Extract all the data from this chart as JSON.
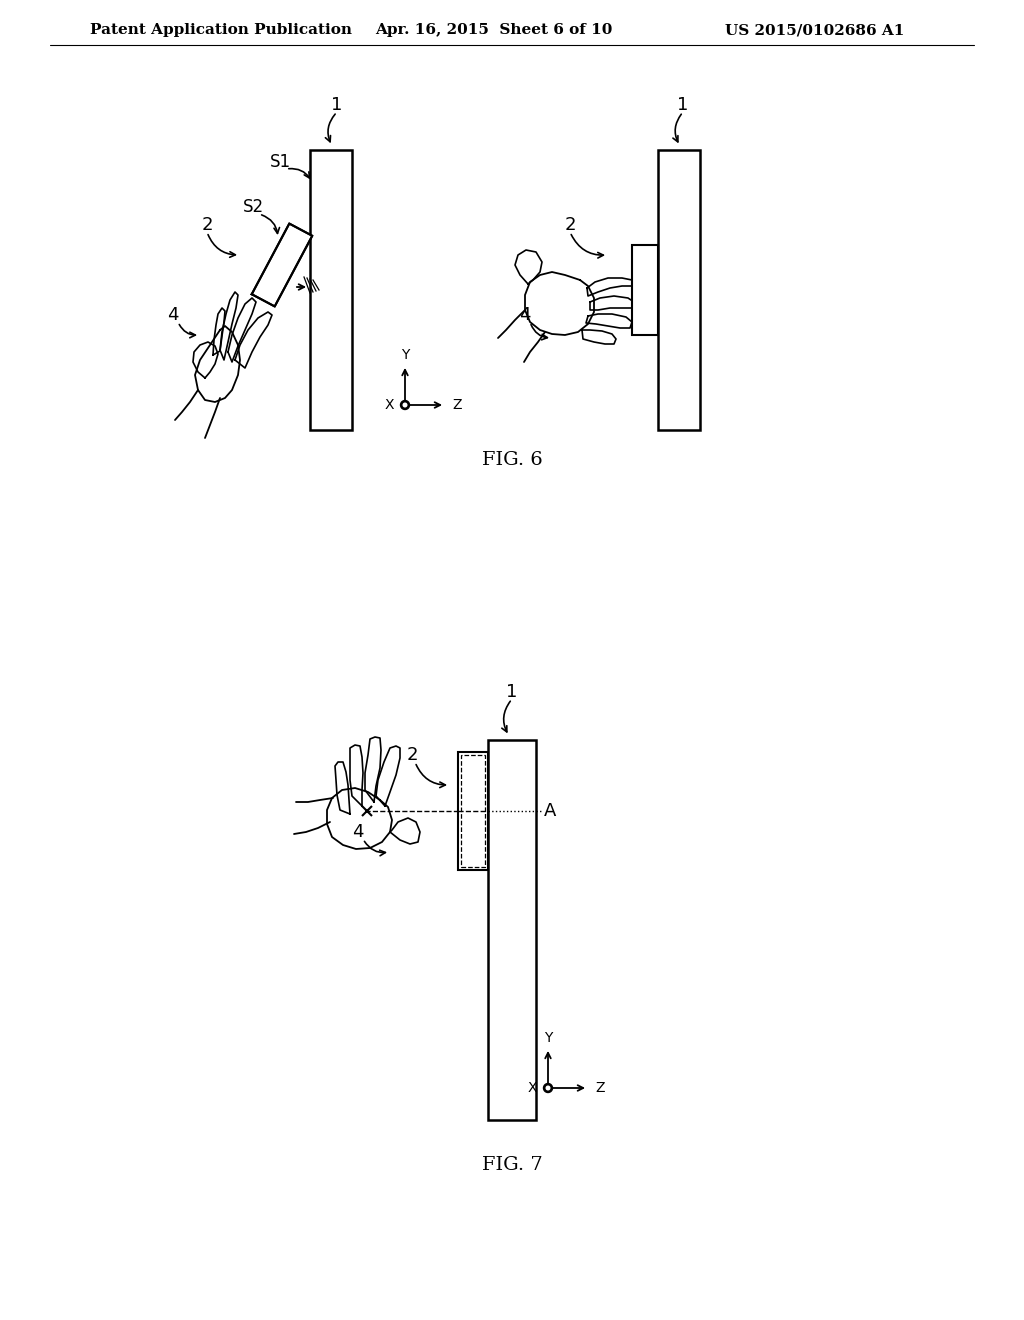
{
  "bg_color": "#ffffff",
  "header_text": "Patent Application Publication",
  "header_date": "Apr. 16, 2015  Sheet 6 of 10",
  "header_patent": "US 2015/0102686 A1",
  "fig6_label": "FIG. 6",
  "fig7_label": "FIG. 7",
  "line_color": "#000000",
  "font_size_header": 11,
  "font_size_number": 13
}
